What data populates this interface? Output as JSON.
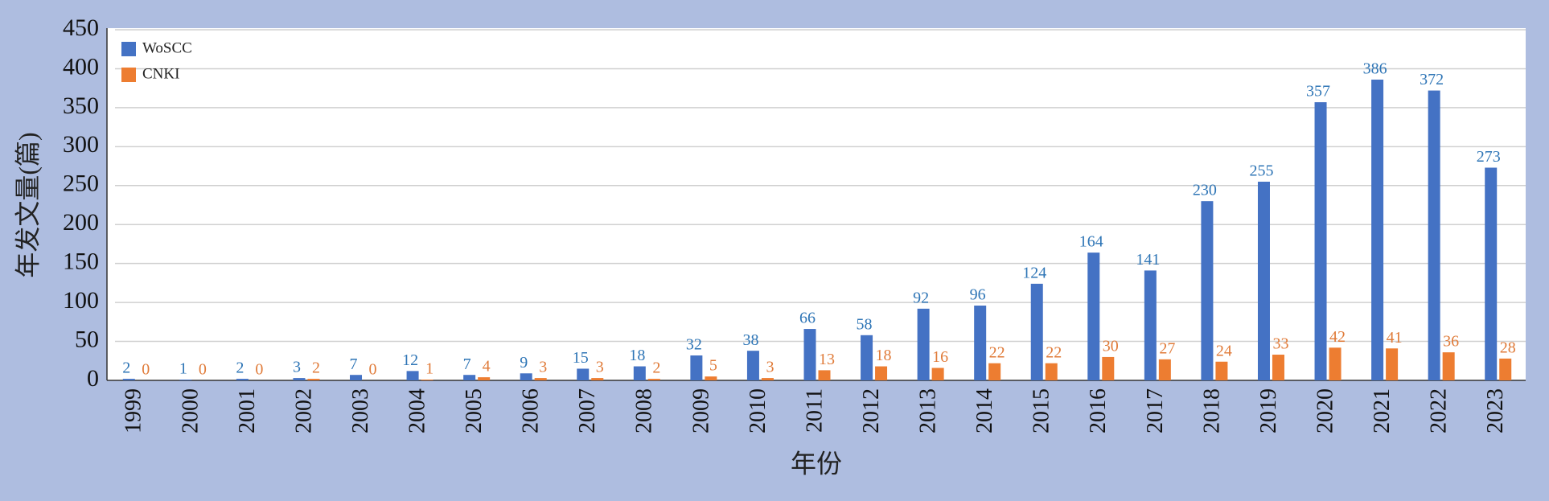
{
  "chart_data": {
    "type": "bar",
    "xlabel": "年份",
    "ylabel": "年发文量(篇)",
    "categories": [
      "1999",
      "2000",
      "2001",
      "2002",
      "2003",
      "2004",
      "2005",
      "2006",
      "2007",
      "2008",
      "2009",
      "2010",
      "2011",
      "2012",
      "2013",
      "2014",
      "2015",
      "2016",
      "2017",
      "2018",
      "2019",
      "2020",
      "2021",
      "2022",
      "2023"
    ],
    "series": [
      {
        "name": "WoSCC",
        "color": "#4472c4",
        "label_color": "#2e75b6",
        "values": [
          2,
          1,
          2,
          3,
          7,
          12,
          7,
          9,
          15,
          18,
          32,
          38,
          66,
          58,
          92,
          96,
          124,
          164,
          141,
          230,
          255,
          357,
          386,
          372,
          273
        ]
      },
      {
        "name": "CNKI",
        "color": "#ed7d31",
        "label_color": "#e07b39",
        "values": [
          0,
          0,
          0,
          2,
          0,
          1,
          4,
          3,
          3,
          2,
          5,
          3,
          13,
          18,
          16,
          22,
          22,
          30,
          27,
          24,
          33,
          42,
          41,
          36,
          28
        ]
      }
    ],
    "ylim": [
      0,
      450
    ],
    "yticks": [
      0,
      50,
      100,
      150,
      200,
      250,
      300,
      350,
      400,
      450
    ],
    "grid": true,
    "legend": "upper left"
  }
}
